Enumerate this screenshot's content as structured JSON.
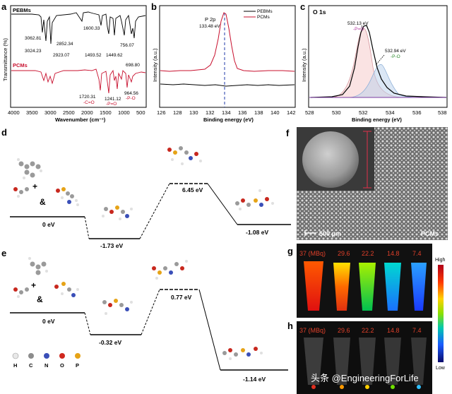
{
  "panel_a": {
    "label": "a",
    "series": [
      "PEBMs",
      "PCMs"
    ],
    "peaks_top": [
      "3062.81",
      "3024.23",
      "2923.07",
      "2852.34",
      "1600.33",
      "1493.52",
      "1449.62",
      "756.07",
      "698.80"
    ],
    "peaks_bottom": [
      "1720.31",
      "1241.12",
      "964.56"
    ],
    "group_CO": "-C=O",
    "group_PO1": "-P=O",
    "group_PO2": "-P-O",
    "ylabel": "Transmittance (%)",
    "xlabel": "Wavenumber (cm⁻¹)",
    "xticks": [
      "4000",
      "3500",
      "3000",
      "2500",
      "2000",
      "1500",
      "1000",
      "500"
    ]
  },
  "panel_b": {
    "label": "b",
    "legend": [
      "PEBMs",
      "PCMs"
    ],
    "peak_label": "P 2p",
    "peak_value": "133.48 eV",
    "ylabel": "Intensity (a.u.)",
    "xlabel": "Binding energy (eV)",
    "xticks": [
      "126",
      "128",
      "130",
      "132",
      "134",
      "136",
      "138",
      "140",
      "142"
    ]
  },
  "panel_c": {
    "label": "c",
    "title": "O 1s",
    "peak1_value": "532.13 eV",
    "peak1_group": "-P=O",
    "peak2_value": "532.94 eV",
    "peak2_group": "-P-O",
    "ylabel": "Intensity (a.u.)",
    "xlabel": "Binding energy (eV)",
    "xticks": [
      "528",
      "530",
      "532",
      "534",
      "536",
      "538"
    ]
  },
  "panel_d": {
    "label": "d",
    "energies": [
      "0 eV",
      "-1.73 eV",
      "6.45 eV",
      "-1.08 eV"
    ],
    "plus": "+",
    "amp": "&"
  },
  "panel_e": {
    "label": "e",
    "energies": [
      "0 eV",
      "-0.32 eV",
      "0.77 eV",
      "-1.14 eV"
    ],
    "plus": "+",
    "amp": "&"
  },
  "atom_legend": [
    {
      "symbol": "H",
      "color": "#e8e8e8"
    },
    {
      "symbol": "C",
      "color": "#8c8c8c"
    },
    {
      "symbol": "N",
      "color": "#3a4fb8"
    },
    {
      "symbol": "O",
      "color": "#d0281e"
    },
    {
      "symbol": "P",
      "color": "#e6a317"
    }
  ],
  "panel_f": {
    "label": "f",
    "scalebar": "500 µm",
    "caption": "PCMs"
  },
  "panel_g": {
    "label": "g",
    "activities": [
      "37 (MBq)",
      "29.6",
      "22.2",
      "14.8",
      "7.4"
    ],
    "colorbar_high": "High",
    "colorbar_low": "Low"
  },
  "panel_h": {
    "label": "h",
    "activities": [
      "37 (MBq)",
      "29.6",
      "22.2",
      "14.8",
      "7.4"
    ]
  },
  "watermark": "头条 @EngineeringForLife"
}
